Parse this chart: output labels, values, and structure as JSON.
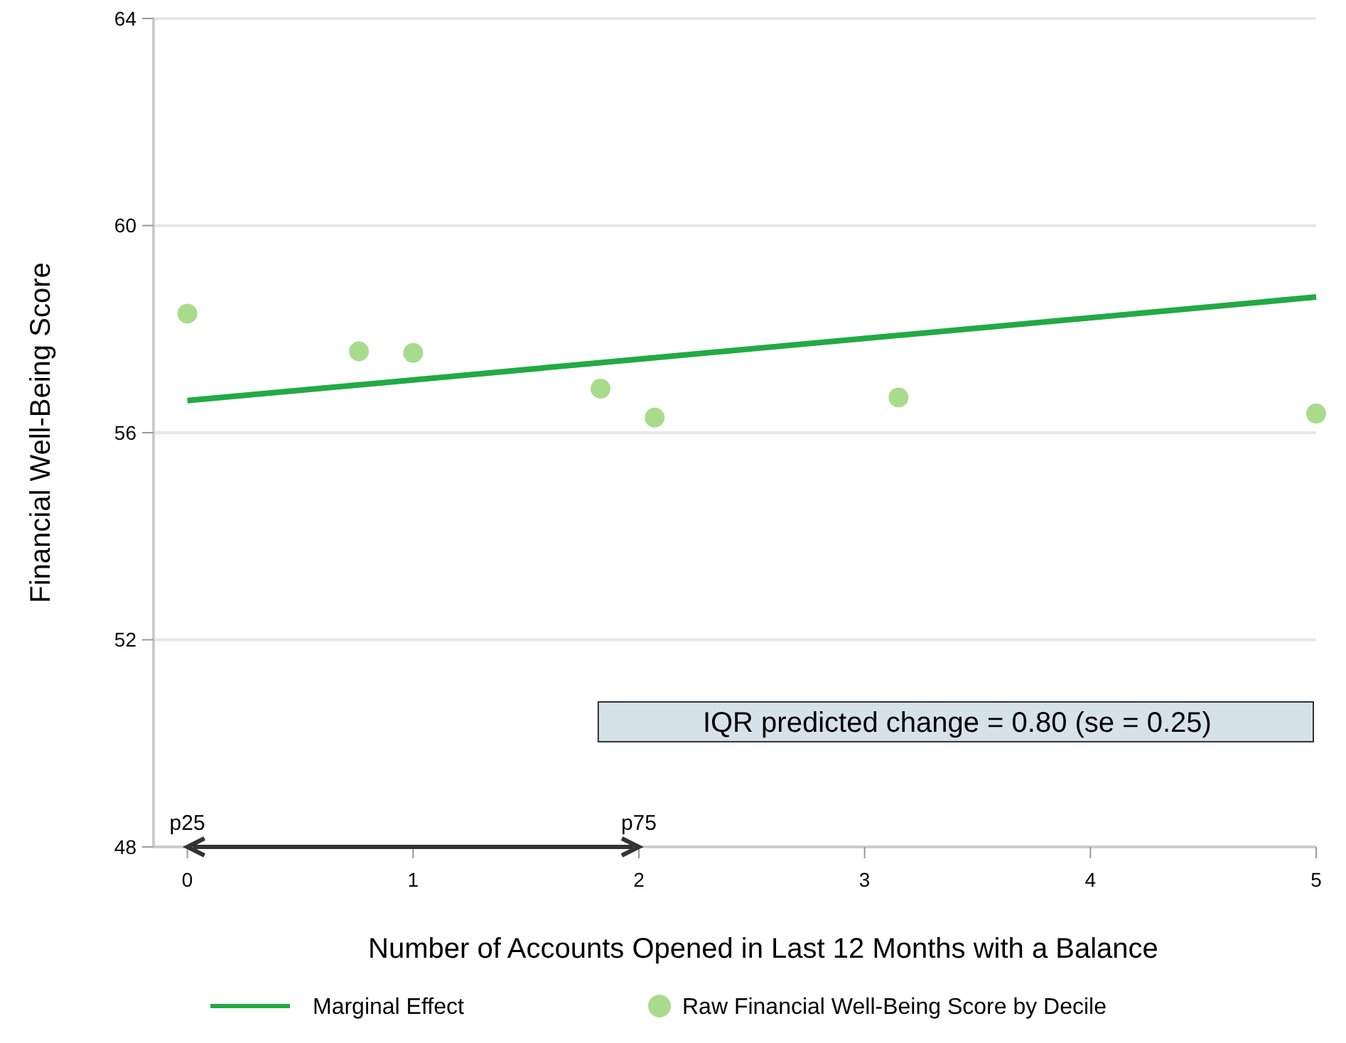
{
  "chart_data": {
    "type": "scatter",
    "xlabel": "Number of Accounts Opened in Last 12 Months with a Balance",
    "ylabel": "Financial Well-Being Score",
    "series": [
      {
        "name": "Marginal Effect",
        "type": "line",
        "color": "#22aa44",
        "x": [
          0,
          5
        ],
        "values": [
          56.62,
          58.62
        ]
      },
      {
        "name": "Raw Financial Well-Being Score by Decile",
        "marker": "circle",
        "color": "#a8dc8c",
        "x": [
          0,
          0.76,
          1,
          1.83,
          2.07,
          3.15,
          5
        ],
        "values": [
          58.3,
          57.57,
          57.54,
          56.85,
          56.29,
          56.68,
          56.37
        ]
      }
    ],
    "annotations": [
      "IQR predicted change = 0.80 (se = 0.25)",
      "p25",
      "p75"
    ],
    "xlim": [
      -0.15,
      5
    ],
    "xticks": [
      0,
      1,
      2,
      3,
      4,
      5
    ],
    "ylim": [
      48,
      64
    ],
    "yticks": [
      48,
      52,
      56,
      60,
      64
    ],
    "grid": "y",
    "legend": "bottom"
  }
}
